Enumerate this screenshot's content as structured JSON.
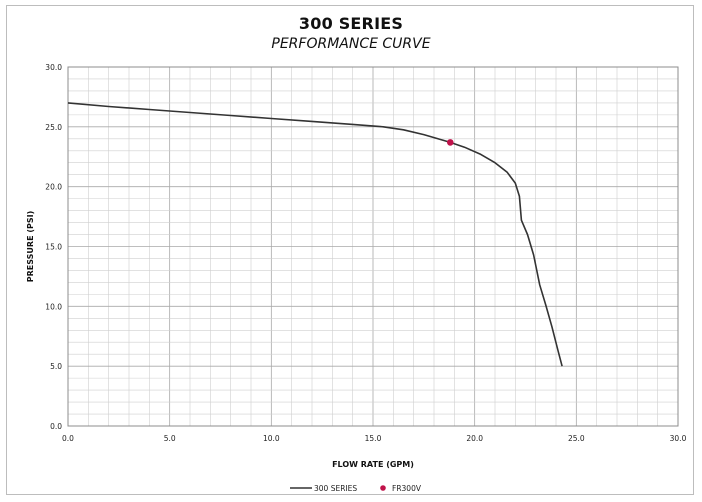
{
  "chart_data": {
    "type": "line",
    "title": "300 SERIES",
    "subtitle": "PERFORMANCE CURVE",
    "xlabel": "FLOW RATE (GPM)",
    "ylabel": "PRESSURE (PSI)",
    "xlim": [
      0,
      30
    ],
    "ylim": [
      0,
      30
    ],
    "x_ticks": [
      "0.0",
      "5.0",
      "10.0",
      "15.0",
      "20.0",
      "25.0",
      "30.0"
    ],
    "y_ticks": [
      "0.0",
      "5.0",
      "10.0",
      "15.0",
      "20.0",
      "25.0",
      "30.0"
    ],
    "grid": true,
    "grid_minor": {
      "x_step": 1,
      "y_step": 1
    },
    "legend_position": "bottom-center",
    "series": [
      {
        "name": "300 SERIES",
        "kind": "line",
        "color": "#333333",
        "points": [
          [
            0.0,
            27.0
          ],
          [
            2.0,
            26.7
          ],
          [
            4.0,
            26.45
          ],
          [
            6.0,
            26.2
          ],
          [
            8.0,
            25.95
          ],
          [
            10.0,
            25.7
          ],
          [
            12.0,
            25.45
          ],
          [
            14.0,
            25.2
          ],
          [
            15.5,
            25.0
          ],
          [
            16.5,
            24.75
          ],
          [
            17.5,
            24.35
          ],
          [
            18.3,
            23.95
          ],
          [
            18.8,
            23.7
          ],
          [
            19.5,
            23.3
          ],
          [
            20.3,
            22.7
          ],
          [
            21.0,
            22.0
          ],
          [
            21.6,
            21.2
          ],
          [
            22.0,
            20.3
          ],
          [
            22.2,
            19.2
          ],
          [
            22.3,
            17.2
          ],
          [
            22.6,
            16.0
          ],
          [
            22.9,
            14.3
          ],
          [
            23.2,
            11.8
          ],
          [
            23.5,
            10.1
          ],
          [
            23.8,
            8.3
          ],
          [
            24.1,
            6.3
          ],
          [
            24.3,
            5.0
          ]
        ]
      },
      {
        "name": "FR300V",
        "kind": "marker",
        "color": "#c0124a",
        "points": [
          [
            18.8,
            23.7
          ]
        ]
      }
    ]
  }
}
